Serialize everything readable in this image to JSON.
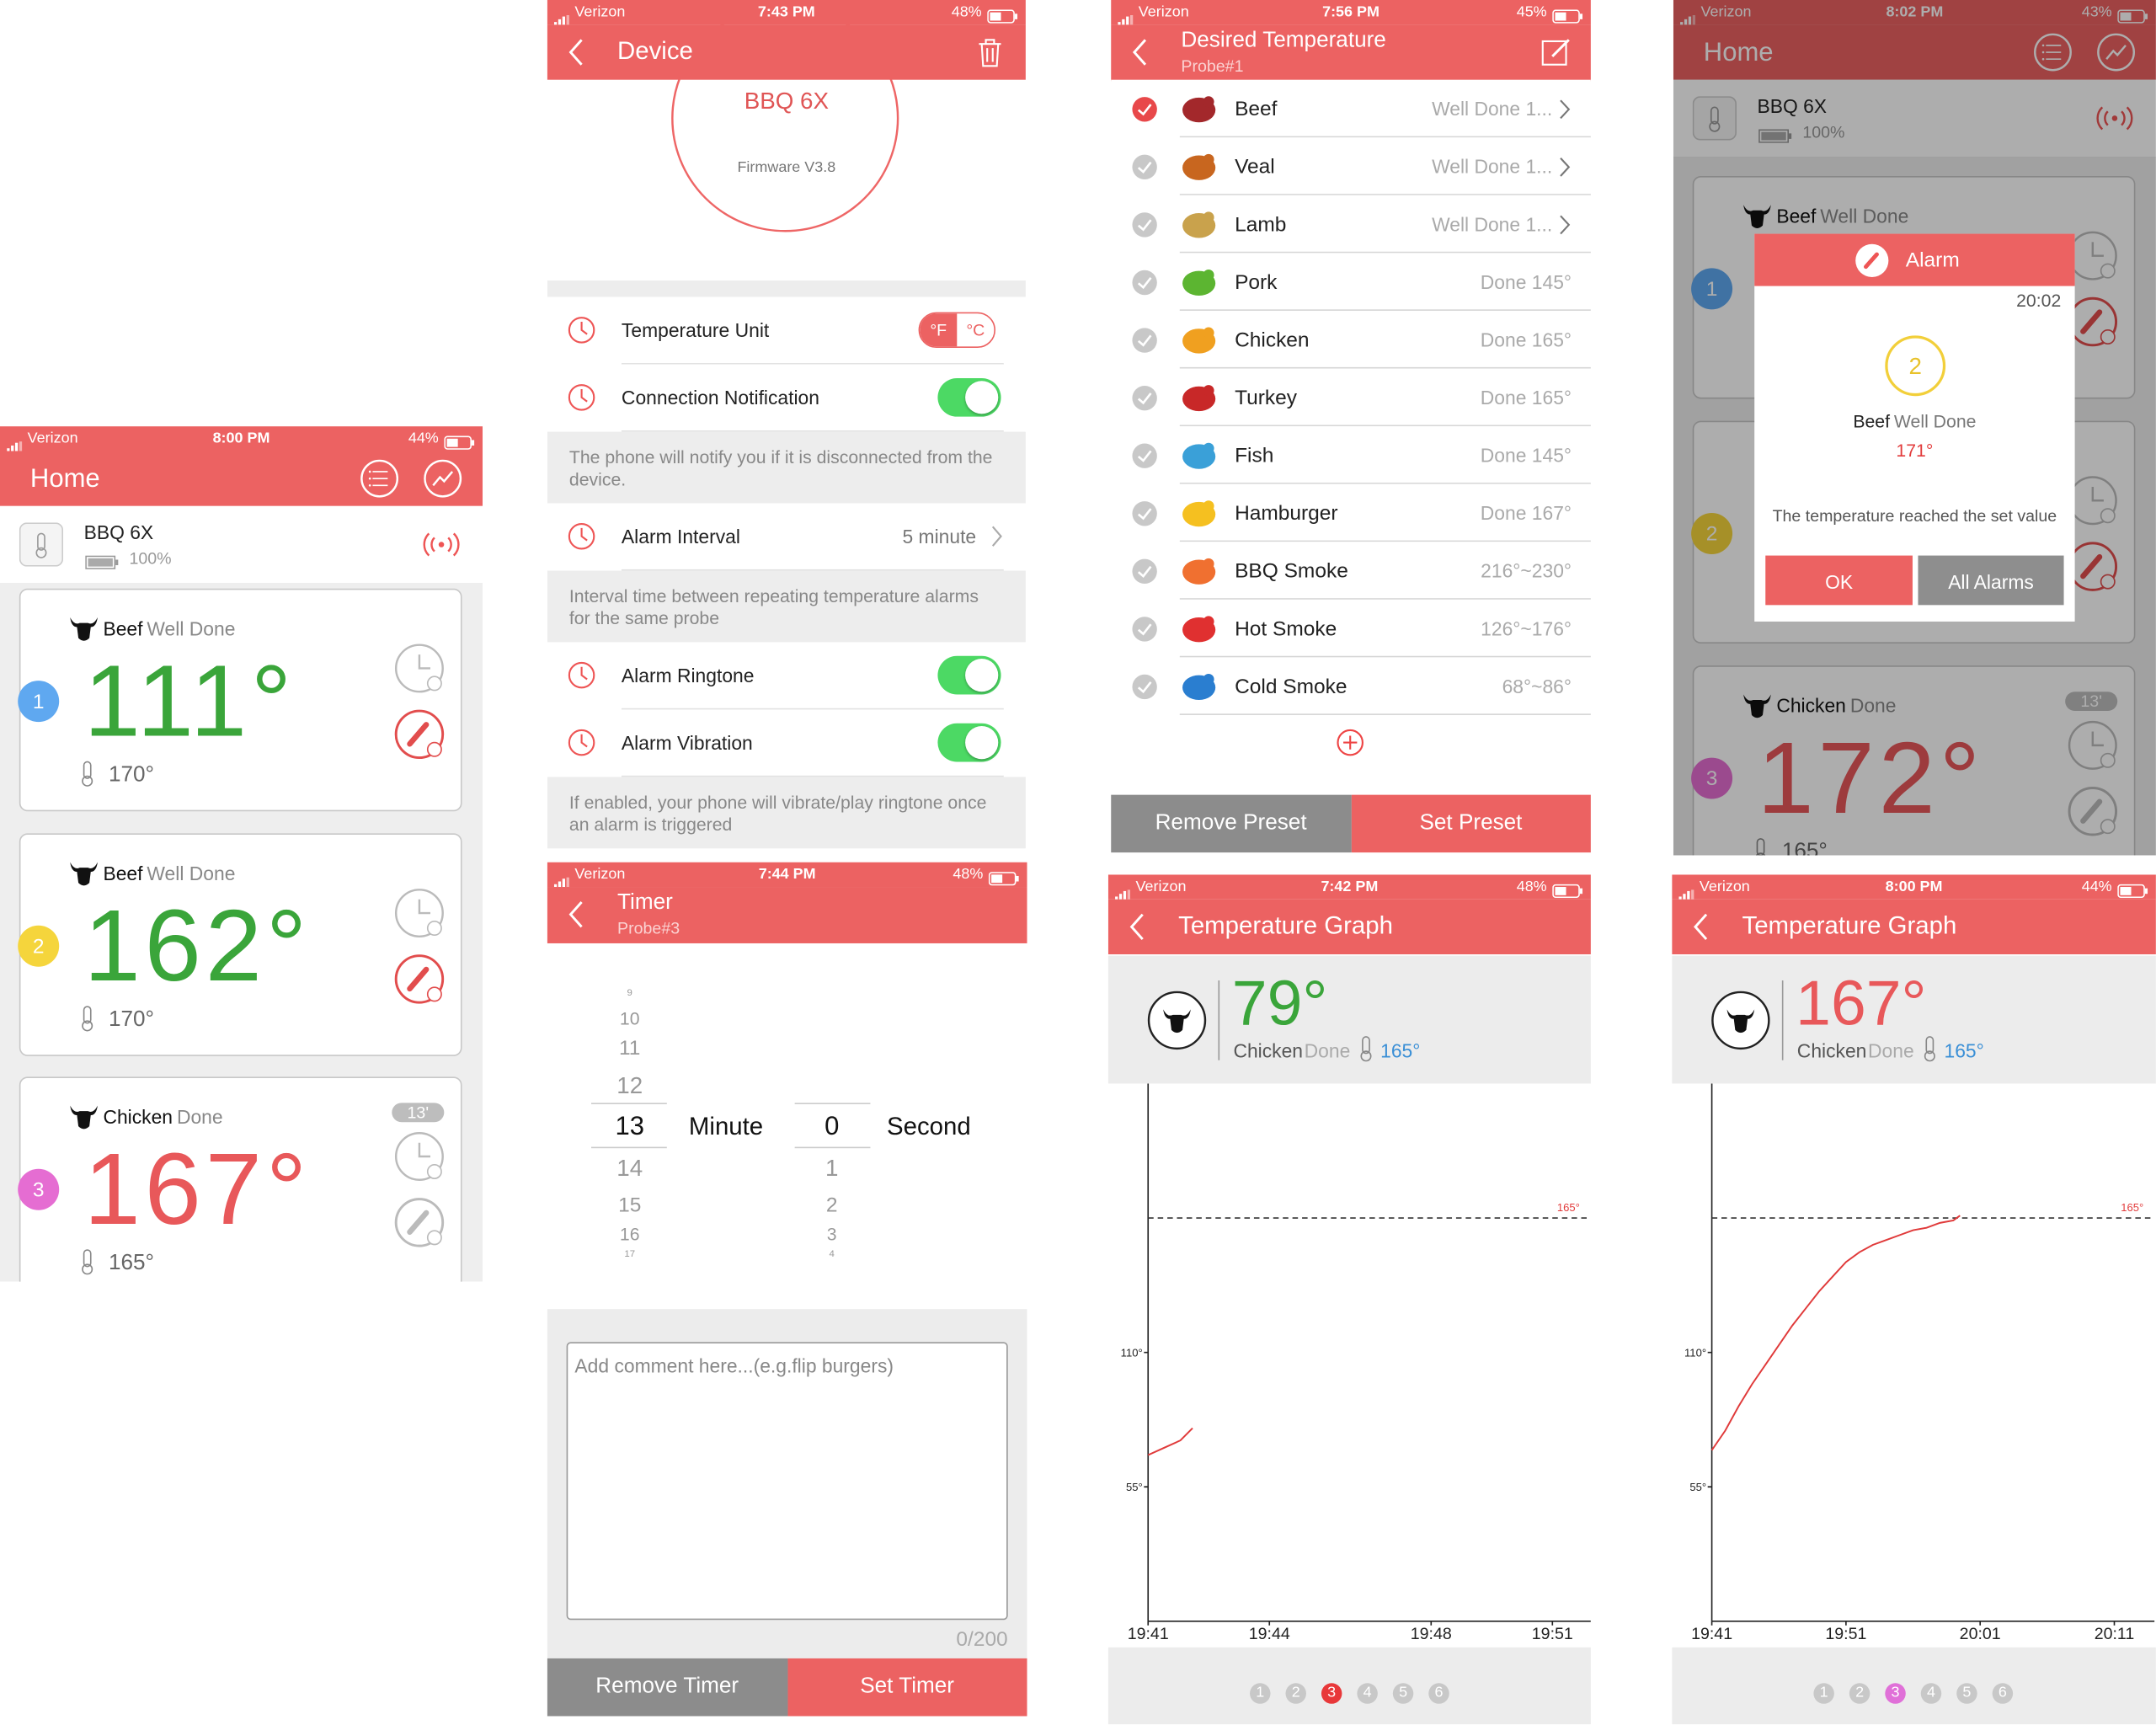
{
  "home": {
    "status": {
      "carrier": "Verizon",
      "time": "8:00 PM",
      "battery": "44%"
    },
    "title": "Home",
    "device": {
      "name": "BBQ 6X",
      "battery": "100%"
    },
    "probes": [
      {
        "number": "1",
        "badge_color": "#5fa8f0",
        "food": "Beef",
        "doneness": "Well Done",
        "temperature": "111°",
        "color": "#3aa53a",
        "target": "170°"
      },
      {
        "number": "2",
        "badge_color": "#f5d53c",
        "food": "Beef",
        "doneness": "Well Done",
        "temperature": "162°",
        "color": "#3aa53a",
        "target": "170°"
      },
      {
        "number": "3",
        "badge_color": "#e56dd2",
        "food": "Chicken",
        "doneness": "Done",
        "temperature": "167°",
        "color": "#e8585a",
        "target": "165°",
        "timer": "13'"
      }
    ]
  },
  "device": {
    "status": {
      "carrier": "Verizon",
      "time": "7:43 PM",
      "battery": "48%"
    },
    "title": "Device",
    "name": "BBQ 6X",
    "firmware": "Firmware V3.8",
    "settings": [
      {
        "label": "Temperature Unit",
        "options": [
          "°F",
          "°C"
        ]
      },
      {
        "label": "Connection Notification",
        "switch": true,
        "note": "The phone will notify you if it is disconnected from the device."
      },
      {
        "label": "Alarm Interval",
        "value": "5 minute",
        "note": "Interval time between repeating temperature alarms for the same probe"
      },
      {
        "label": "Alarm Ringtone",
        "switch": true
      },
      {
        "label": "Alarm Vibration",
        "switch": true,
        "note": "If enabled, your phone will vibrate/play ringtone once an alarm is triggered"
      }
    ]
  },
  "timer": {
    "status": {
      "carrier": "Verizon",
      "time": "7:44 PM",
      "battery": "48%"
    },
    "title": "Timer",
    "probe": "Probe#3",
    "minutes_above": [
      "9",
      "10",
      "11",
      "12"
    ],
    "minute": "13",
    "minutes_below": [
      "14",
      "15",
      "16",
      "17"
    ],
    "minute_unit": "Minute",
    "second": "0",
    "seconds_below": [
      "1",
      "2",
      "3",
      "4"
    ],
    "second_unit": "Second",
    "comment_placeholder": "Add comment here...(e.g.flip burgers)",
    "counter": "0/200",
    "buttons": [
      "Remove Timer",
      "Set Timer"
    ]
  },
  "desired": {
    "status": {
      "carrier": "Verizon",
      "time": "7:56 PM",
      "battery": "45%"
    },
    "title": "Desired Temperature",
    "probe": "Probe#1",
    "presets": [
      {
        "name": "Beef",
        "value": "Well Done 1...",
        "color": "#a3282b",
        "selected": true,
        "more": true
      },
      {
        "name": "Veal",
        "value": "Well Done 1...",
        "color": "#c8661f",
        "more": true
      },
      {
        "name": "Lamb",
        "value": "Well Done 1...",
        "color": "#c9a24c",
        "more": true
      },
      {
        "name": "Pork",
        "value": "Done 145°",
        "color": "#5cb531"
      },
      {
        "name": "Chicken",
        "value": "Done 165°",
        "color": "#f0a020"
      },
      {
        "name": "Turkey",
        "value": "Done 165°",
        "color": "#c82828"
      },
      {
        "name": "Fish",
        "value": "Done 145°",
        "color": "#3aa0d8"
      },
      {
        "name": "Hamburger",
        "value": "Done 167°",
        "color": "#f5c020"
      },
      {
        "name": "BBQ Smoke",
        "value": "216°~230°",
        "color": "#f07030"
      },
      {
        "name": "Hot Smoke",
        "value": "126°~176°",
        "color": "#e03030"
      },
      {
        "name": "Cold Smoke",
        "value": "68°~86°",
        "color": "#2a7ed0"
      }
    ],
    "buttons": [
      "Remove Preset",
      "Set Preset"
    ]
  },
  "alarm_home": {
    "status": {
      "carrier": "Verizon",
      "time": "8:02 PM",
      "battery": "43%"
    },
    "title": "Home",
    "device": {
      "name": "BBQ 6X",
      "battery": "100%"
    },
    "probes": [
      {
        "number": "1",
        "badge_color": "#5fa8f0",
        "food": "Beef",
        "doneness": "Well Done"
      },
      {
        "number": "2",
        "badge_color": "#f5d53c"
      },
      {
        "number": "3",
        "badge_color": "#e56dd2",
        "food": "Chicken",
        "doneness": "Done",
        "temperature": "172°",
        "color": "#e8585a",
        "target": "165°",
        "timer": "13'"
      }
    ],
    "alarm": {
      "title": "Alarm",
      "time": "20:02",
      "probe": "2",
      "food": "Beef",
      "doneness": "Well Done",
      "temperature": "171°",
      "message": "The temperature reached the set value",
      "buttons": [
        "OK",
        "All Alarms"
      ]
    }
  },
  "graph_1": {
    "status": {
      "carrier": "Verizon",
      "time": "7:42 PM",
      "battery": "48%"
    },
    "title": "Temperature Graph",
    "temperature": "79°",
    "temperature_color": "#3aa53a",
    "food": "Chicken",
    "doneness": "Done",
    "target": "165°",
    "chart_data": {
      "type": "line",
      "xlim": [
        0,
        10.95
      ],
      "ylim": [
        0,
        220
      ],
      "xticks": [
        {
          "value": 0,
          "label": "19:41"
        },
        {
          "value": 3,
          "label": "19:44"
        },
        {
          "value": 7,
          "label": "19:48"
        },
        {
          "value": 10,
          "label": "19:51"
        }
      ],
      "yticks": [
        {
          "value": 55,
          "label": "55°"
        },
        {
          "value": 110,
          "label": "110°"
        }
      ],
      "target_line": {
        "value": 165,
        "label": "165°"
      },
      "series": [
        {
          "color": "#e03a3a",
          "x": [
            0,
            0.4,
            0.8,
            1.1
          ],
          "values": [
            68,
            71,
            74,
            79
          ]
        }
      ]
    },
    "pages": [
      "1",
      "2",
      "3",
      "4",
      "5",
      "6"
    ],
    "active_page": "3",
    "active_color": "#e8383a"
  },
  "graph_2": {
    "status": {
      "carrier": "Verizon",
      "time": "8:00 PM",
      "battery": "44%"
    },
    "title": "Temperature Graph",
    "temperature": "167°",
    "temperature_color": "#e8585a",
    "food": "Chicken",
    "doneness": "Done",
    "target": "165°",
    "chart_data": {
      "type": "line",
      "xlim": [
        0,
        33
      ],
      "ylim": [
        0,
        220
      ],
      "xticks": [
        {
          "value": 0,
          "label": "19:41"
        },
        {
          "value": 10,
          "label": "19:51"
        },
        {
          "value": 20,
          "label": "20:01"
        },
        {
          "value": 30,
          "label": "20:11"
        }
      ],
      "yticks": [
        {
          "value": 55,
          "label": "55°"
        },
        {
          "value": 110,
          "label": "110°"
        }
      ],
      "target_line": {
        "value": 165,
        "label": "165°"
      },
      "series": [
        {
          "color": "#e03a3a",
          "x": [
            0,
            1,
            2,
            3,
            4,
            5,
            6,
            7,
            8,
            9,
            10,
            11,
            12,
            13,
            14,
            15,
            16,
            17,
            18,
            18.5
          ],
          "values": [
            70,
            78,
            88,
            97,
            105,
            113,
            121,
            128,
            135,
            141,
            147,
            151,
            154,
            156,
            158,
            160,
            161,
            163,
            164,
            166
          ]
        }
      ]
    },
    "pages": [
      "1",
      "2",
      "3",
      "4",
      "5",
      "6"
    ],
    "active_page": "3",
    "active_color": "#e070d8"
  }
}
